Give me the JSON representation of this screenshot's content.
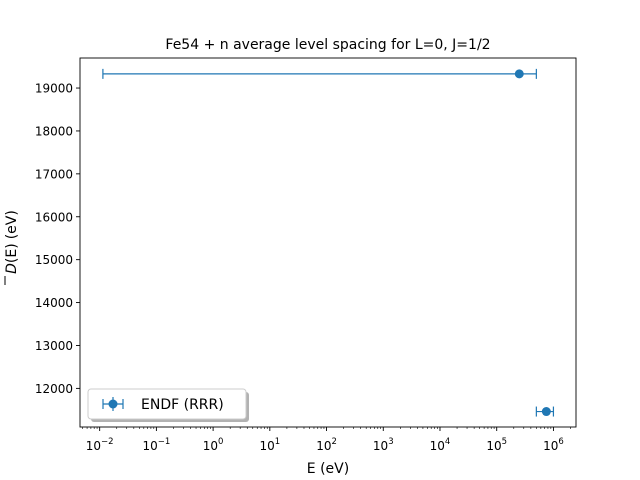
{
  "chart_data": {
    "type": "scatter",
    "title": "Fe54 + n average level spacing for L=0, J=1/2",
    "xlabel": "E (eV)",
    "ylabel_main": "D",
    "ylabel_arg": "(E)",
    "ylabel_unit": "(eV)",
    "xscale": "log",
    "xlim": [
      0.0045,
      2500000
    ],
    "ylim": [
      11100,
      19700
    ],
    "x_ticks": [
      {
        "exp": -2,
        "base": "10",
        "power": "−2"
      },
      {
        "exp": -1,
        "base": "10",
        "power": "−1"
      },
      {
        "exp": 0,
        "base": "10",
        "power": "0"
      },
      {
        "exp": 1,
        "base": "10",
        "power": "1"
      },
      {
        "exp": 2,
        "base": "10",
        "power": "2"
      },
      {
        "exp": 3,
        "base": "10",
        "power": "3"
      },
      {
        "exp": 4,
        "base": "10",
        "power": "4"
      },
      {
        "exp": 5,
        "base": "10",
        "power": "5"
      },
      {
        "exp": 6,
        "base": "10",
        "power": "6"
      }
    ],
    "y_ticks": [
      12000,
      13000,
      14000,
      15000,
      16000,
      17000,
      18000,
      19000
    ],
    "series": [
      {
        "name": "ENDF (RRR)",
        "color": "#1f77b4",
        "points": [
          {
            "x": 250000,
            "y": 19330,
            "xerr_low": 0.0114,
            "xerr_high": 500000
          },
          {
            "x": 750000,
            "y": 11460,
            "xerr_low": 500000,
            "xerr_high": 1000000
          }
        ]
      }
    ],
    "legend": {
      "position": "lower-left",
      "label": "ENDF (RRR)"
    },
    "grid": false
  }
}
